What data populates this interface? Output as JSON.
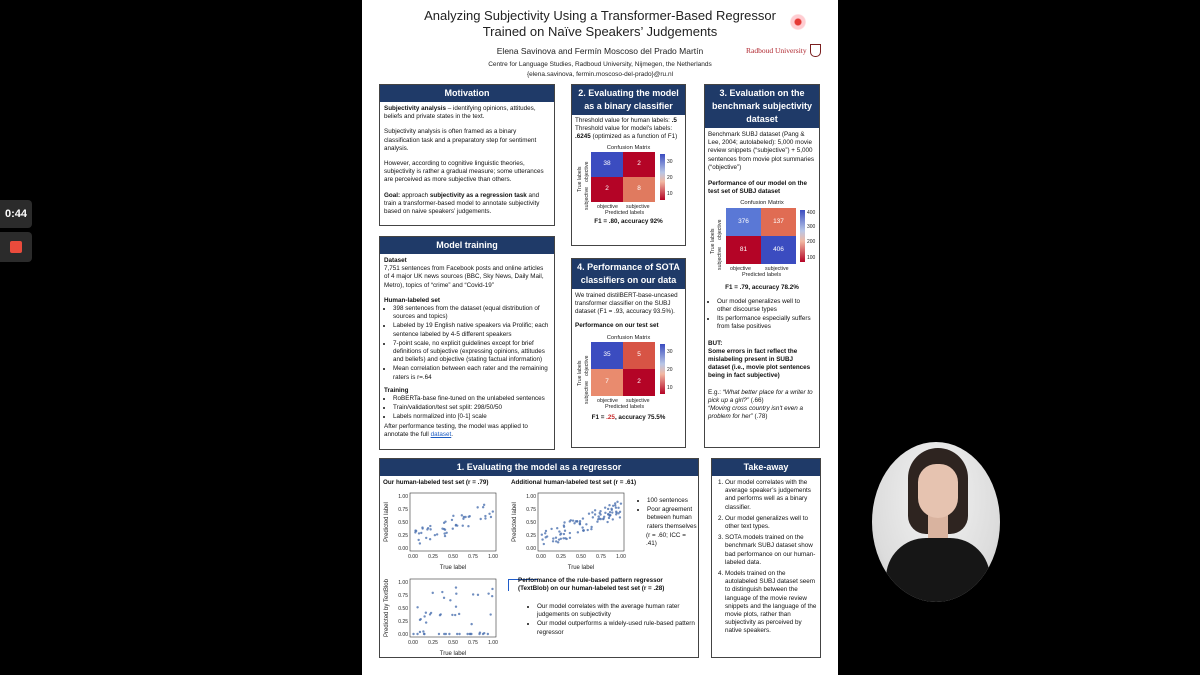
{
  "recorder": {
    "timer": "0:44"
  },
  "poster": {
    "title_line1": "Analyzing Subjectivity Using a Transformer-Based Regressor",
    "title_line2": "Trained on Naïve Speakers’ Judgements",
    "authors": "Elena Savinova and Fermín Moscoso del Prado Martín",
    "affiliation": "Centre for Language Studies, Radboud University, Nijmegen, the Netherlands",
    "emails": "{elena.savinova, fermin.moscoso-del-prado}@ru.nl",
    "logo_text": "Radboud University"
  },
  "motivation": {
    "heading": "Motivation",
    "p1_bold": "Subjectivity analysis",
    "p1_rest": " – identifying opinions, attitudes, beliefs and private states in the text.",
    "p2": "Subjectivity analysis is often framed as a binary classification task and a preparatory step for sentiment analysis.",
    "p3": "However, according to cognitive linguistic theories, subjectivity is rather a gradual measure; some utterances are perceived as more subjective than others.",
    "p4_label": "Goal:",
    "p4_a": " approach ",
    "p4_bold": "subjectivity as a regression task",
    "p4_b": " and train a transformer-based model to annotate subjectivity based on naive speakers’ judgements."
  },
  "model_training": {
    "heading": "Model training",
    "dataset_title": "Dataset",
    "dataset_text": "7,751 sentences from Facebook posts and online articles of 4 major UK news sources (BBC, Sky News, Daily Mail, Metro), topics of “crime” and “Covid-19”",
    "human_title": "Human-labeled set",
    "human_items": [
      "398 sentences from the dataset (equal distribution of sources and topics)",
      "Labeled by 19 English native speakers via Prolific; each sentence labeled by 4-5 different speakers",
      "7-point scale, no explicit guidelines except for brief definitions of subjective (expressing opinions, attitudes and beliefs) and objective (stating factual information)",
      "Mean correlation between each rater and the remaining raters is r=.64"
    ],
    "training_title": "Training",
    "training_items": [
      "RoBERTa-base fine-tuned on the unlabeled sentences",
      "Train/validation/test set split: 298/50/50",
      "Labels normalized into [0-1] scale"
    ],
    "after_text": "After performance testing, the model was applied to annotate the full ",
    "after_link": "dataset",
    "after_end": "."
  },
  "binary": {
    "heading_l1": "2. Evaluating the model",
    "heading_l2": "as a binary classifier",
    "t1": "Threshold value for human labels: ",
    "t1_val": ".5",
    "t2": "Threshold value for model's labels:",
    "t2_val": ".6245",
    "t2_rest": " (optimized as a function of F1)",
    "cm": {
      "title": "Confusion Matrix",
      "ylabel": "True labels",
      "xlabel": "Predicted labels",
      "row1": "objective",
      "row2": "subjective",
      "col1": "objective",
      "col2": "subjective",
      "cells": [
        "38",
        "2",
        "2",
        "8"
      ],
      "ticks": [
        "30",
        "20",
        "10"
      ]
    },
    "caption": "F1 = .80, accuracy 92%"
  },
  "sota": {
    "heading_l1": "4. Performance of SOTA",
    "heading_l2": "classifiers on our data",
    "text": "We trained distilBERT-base-uncased transformer classifier on the SUBJ dataset (F1 = .93, accuracy 93.5%).",
    "perf_title": "Performance on our test set",
    "cm": {
      "title": "Confusion Matrix",
      "ylabel": "True labels",
      "xlabel": "Predicted labels",
      "row1": "objective",
      "row2": "subjective",
      "col1": "objective",
      "col2": "subjective",
      "cells": [
        "35",
        "5",
        "7",
        "2"
      ],
      "ticks": [
        "30",
        "20",
        "10"
      ]
    },
    "caption_a": "F1 = ",
    "caption_b": ".25",
    "caption_c": ", accuracy 75.5%"
  },
  "benchmark": {
    "heading_l1": "3. Evaluation on the",
    "heading_l2": "benchmark subjectivity",
    "heading_l3": "dataset",
    "text": "Benchmark SUBJ dataset (Pang & Lee, 2004; autolabeled): 5,000 movie review snippets (“subjective”) + 5,000 sentences from movie plot summaries (“objective”)",
    "perf_title": "Performance of our model on the test set of SUBJ dataset",
    "cm": {
      "title": "Confusion Matrix",
      "ylabel": "True labels",
      "xlabel": "Predicted labels",
      "row1": "objective",
      "row2": "subjective",
      "col1": "objective",
      "col2": "subjective",
      "cells": [
        "376",
        "137",
        "81",
        "406"
      ],
      "ticks": [
        "400",
        "300",
        "200",
        "100"
      ]
    },
    "caption": "F1 = .79, accuracy 78.2%",
    "items": [
      "Our model generalizes well to other discourse types",
      "Its performance especially suffers from false positives"
    ],
    "but": "BUT:",
    "but_text": "Some errors in fact reflect the mislabeling present in SUBJ dataset (i.e., movie plot sentences being in fact subjective)",
    "eg": "E.g.: ",
    "q1": "“What better place for a writer to pick up a girl?”",
    "q1_val": " (.66)",
    "q2": "“Moving cross country isn't even a problem for her”",
    "q2_val": " (.78)"
  },
  "regressor": {
    "heading": "1. Evaluating the model as a regressor",
    "left_title": "Our human-labeled test set (r = .79)",
    "right_title": "Additional human-labeled test set (r = .61)",
    "right_items": [
      "100 sentences",
      "Poor agreement between human raters themselves"
    ],
    "right_stat": "(r = .60; ICC = .41)",
    "rule_title": "Performance of the rule-based pattern regressor (TextBlob) on our human-labeled test set (r = .28)",
    "rule_items": [
      "Our model correlates with the average human rater judgements on subjectivity",
      "Our model outperforms a widely-used rule-based pattern regressor"
    ],
    "plot1": {
      "ylabel": "Predicted label",
      "xlabel": "True label"
    },
    "plot2": {
      "ylabel": "Predicted label",
      "xlabel": "True label"
    },
    "plot3": {
      "ylabel": "Predicted by TextBlob",
      "xlabel": "True label"
    },
    "ticks_x": [
      "0.00",
      "0.25",
      "0.50",
      "0.75",
      "1.00"
    ],
    "ticks_y": [
      "1.00",
      "0.75",
      "0.50",
      "0.25",
      "0.00"
    ]
  },
  "takeaway": {
    "heading": "Take-away",
    "items": [
      "Our model correlates with the average speaker’s judgements and performs well as a binary classifier.",
      "Our model generalizes well to other text types.",
      "SOTA models trained on the benchmark SUBJ dataset show bad performance on our human-labeled data.",
      "Models trained on the autolabeled SUBJ dataset seem to distinguish between the language of the movie review snippets and the language of the movie plots, rather than subjectivity as perceived by native speakers."
    ]
  }
}
